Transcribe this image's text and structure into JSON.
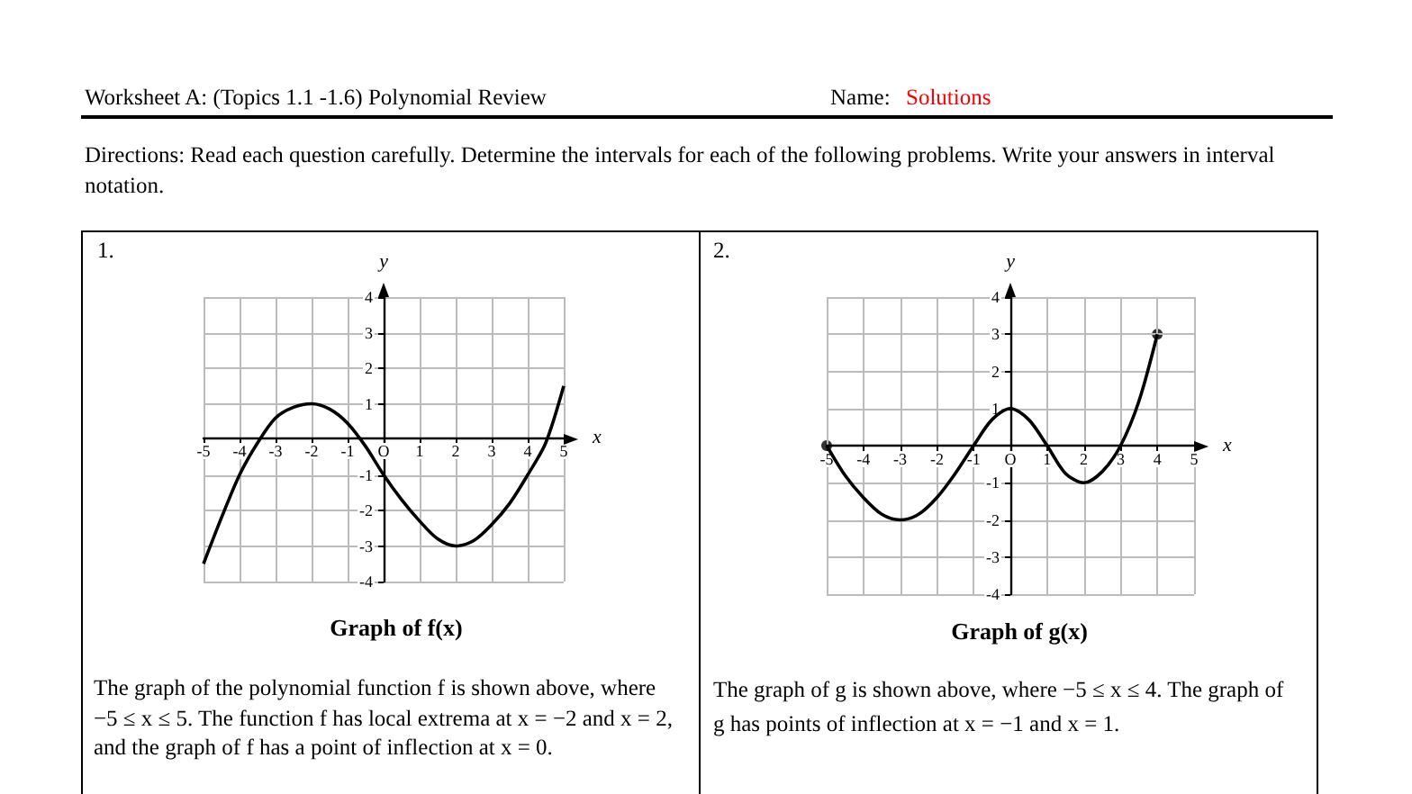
{
  "chart_data": [
    {
      "type": "line",
      "title": "Graph of f(x)",
      "xlabel": "x",
      "ylabel": "y",
      "annotations": [
        "Worksheet A: (Topics 1.1 -1.6) Polynomial Review",
        "Name:",
        "Solutions",
        "Directions:  Read each question carefully.  Determine the intervals for each of the following problems.  Write your answers in interval notation.",
        "1.",
        "The graph of the polynomial function f is shown above, where −5 ≤ x ≤ 5. The function f has local extrema at x = −2 and x = 2, and the graph of f has a point of inflection at x = 0."
      ],
      "series": [
        {
          "type": "line",
          "color": "#000000",
          "marker": "none",
          "x": [
            -5,
            -4.5,
            -4,
            -3.5,
            -3,
            -2.5,
            -2,
            -1.5,
            -1,
            -0.5,
            0,
            0.5,
            1,
            1.5,
            2,
            2.5,
            3,
            3.5,
            4,
            4.5,
            5
          ],
          "values": [
            -3.5,
            -2.2,
            -1,
            -0.1,
            0.6,
            0.9,
            1,
            0.85,
            0.45,
            -0.2,
            -1,
            -1.7,
            -2.3,
            -2.8,
            -3,
            -2.85,
            -2.4,
            -1.8,
            -1,
            -0.1,
            1.5
          ]
        }
      ],
      "xlim": [
        -5,
        5
      ],
      "ylim": [
        -4,
        4
      ],
      "xticks": [
        -5,
        -4,
        -3,
        -2,
        -1,
        {
          "value": 0,
          "label": "O"
        },
        1,
        2,
        3,
        4,
        5
      ],
      "yticks": [
        -4,
        -3,
        -2,
        -1,
        1,
        2,
        3,
        4
      ],
      "grid": true
    },
    {
      "type": "line",
      "title": "Graph of g(x)",
      "xlabel": "x",
      "ylabel": "y",
      "annotations": [
        "2.",
        "The graph of g is shown above, where −5 ≤ x ≤ 4.  The graph of g has points of inflection at x = −1 and x = 1."
      ],
      "series": [
        {
          "type": "line",
          "color": "#000000",
          "marker": "none",
          "x": [
            -5,
            -4.5,
            -4,
            -3.5,
            -3,
            -2.5,
            -2,
            -1.5,
            -1,
            -0.5,
            0,
            0.5,
            1,
            1.5,
            2,
            2.5,
            3,
            3.5,
            4
          ],
          "values": [
            0,
            -0.8,
            -1.4,
            -1.85,
            -2,
            -1.85,
            -1.4,
            -0.75,
            0,
            0.7,
            1,
            0.7,
            0,
            -0.75,
            -1,
            -0.7,
            0,
            1.2,
            3
          ]
        },
        {
          "type": "scatter",
          "color": "#000000",
          "marker": "circle",
          "x": [
            -5,
            4
          ],
          "values": [
            0,
            3
          ]
        }
      ],
      "xlim": [
        -5,
        5
      ],
      "ylim": [
        -4,
        4
      ],
      "xticks": [
        -5,
        -4,
        -3,
        -2,
        -1,
        {
          "value": 0,
          "label": "O"
        },
        1,
        2,
        3,
        4,
        5
      ],
      "yticks": [
        -4,
        -3,
        -2,
        -1,
        1,
        2,
        3,
        4
      ],
      "grid": true
    }
  ]
}
